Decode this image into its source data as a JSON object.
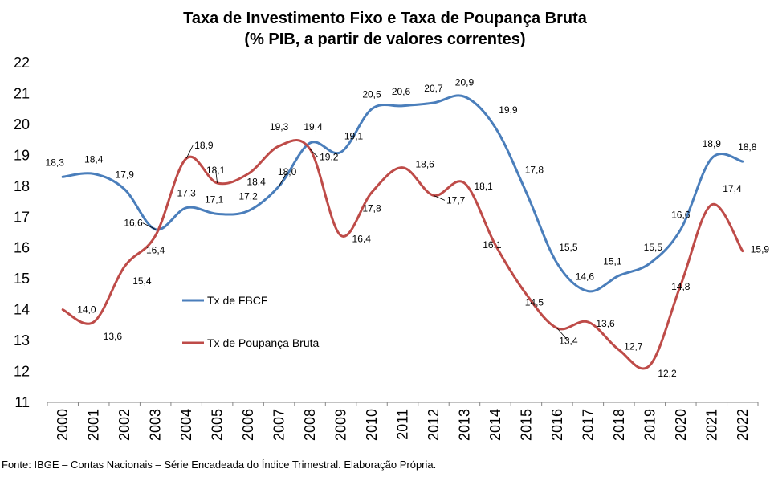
{
  "title_line1": "Taxa de Investimento Fixo e Taxa de Poupança Bruta",
  "title_line2": "(% PIB, a partir de valores correntes)",
  "source": "Fonte: IBGE – Contas Nacionais – Série Encadeada do Índice Trimestral. Elaboração Própria.",
  "colors": {
    "fbcf": "#4a7ebb",
    "poupanca": "#be4b48"
  },
  "chart_data": {
    "type": "line",
    "title": "Taxa de Investimento Fixo e Taxa de Poupança Bruta (% PIB, a partir de valores correntes)",
    "x": [
      "2000",
      "2001",
      "2002",
      "2003",
      "2004",
      "2005",
      "2006",
      "2007",
      "2008",
      "2009",
      "2010",
      "2011",
      "2012",
      "2013",
      "2014",
      "2015",
      "2016",
      "2017",
      "2018",
      "2019",
      "2020",
      "2021",
      "2022"
    ],
    "ylim": [
      11,
      22
    ],
    "yticks": [
      11,
      12,
      13,
      14,
      15,
      16,
      17,
      18,
      19,
      20,
      21,
      22
    ],
    "grid": false,
    "legend_position": "left-middle",
    "series": [
      {
        "name": "Tx de FBCF",
        "color": "#4a7ebb",
        "values": [
          18.3,
          18.4,
          17.9,
          16.6,
          17.3,
          17.1,
          17.2,
          18.0,
          19.4,
          19.1,
          20.5,
          20.6,
          20.7,
          20.9,
          19.9,
          17.8,
          15.5,
          14.6,
          15.1,
          15.5,
          16.6,
          18.9,
          18.8
        ],
        "labels": [
          "18,3",
          "18,4",
          "17,9",
          "16,6",
          "17,3",
          "17,1",
          "17,2",
          "18,0",
          "19,4",
          "19,1",
          "20,5",
          "20,6",
          "20,7",
          "20,9",
          "19,9",
          "17,8",
          "15,5",
          "14,6",
          "15,1",
          "15,5",
          "16,6",
          "18,9",
          "18,8"
        ]
      },
      {
        "name": "Tx de Poupança Bruta",
        "color": "#be4b48",
        "values": [
          14.0,
          13.6,
          15.4,
          16.4,
          18.9,
          18.1,
          18.4,
          19.3,
          19.2,
          16.4,
          17.8,
          18.6,
          17.7,
          18.1,
          16.1,
          14.5,
          13.4,
          13.6,
          12.7,
          12.2,
          14.8,
          17.4,
          15.9
        ],
        "labels": [
          "14,0",
          "13,6",
          "15,4",
          "16,4",
          "18,9",
          "18,1",
          "18,4",
          "19,3",
          "19,2",
          "16,4",
          "17,8",
          "18,6",
          "17,7",
          "18,1",
          "16,1",
          "14,5",
          "13,4",
          "13,6",
          "12,7",
          "12,2",
          "14,8",
          "17,4",
          "15,9"
        ]
      }
    ]
  }
}
